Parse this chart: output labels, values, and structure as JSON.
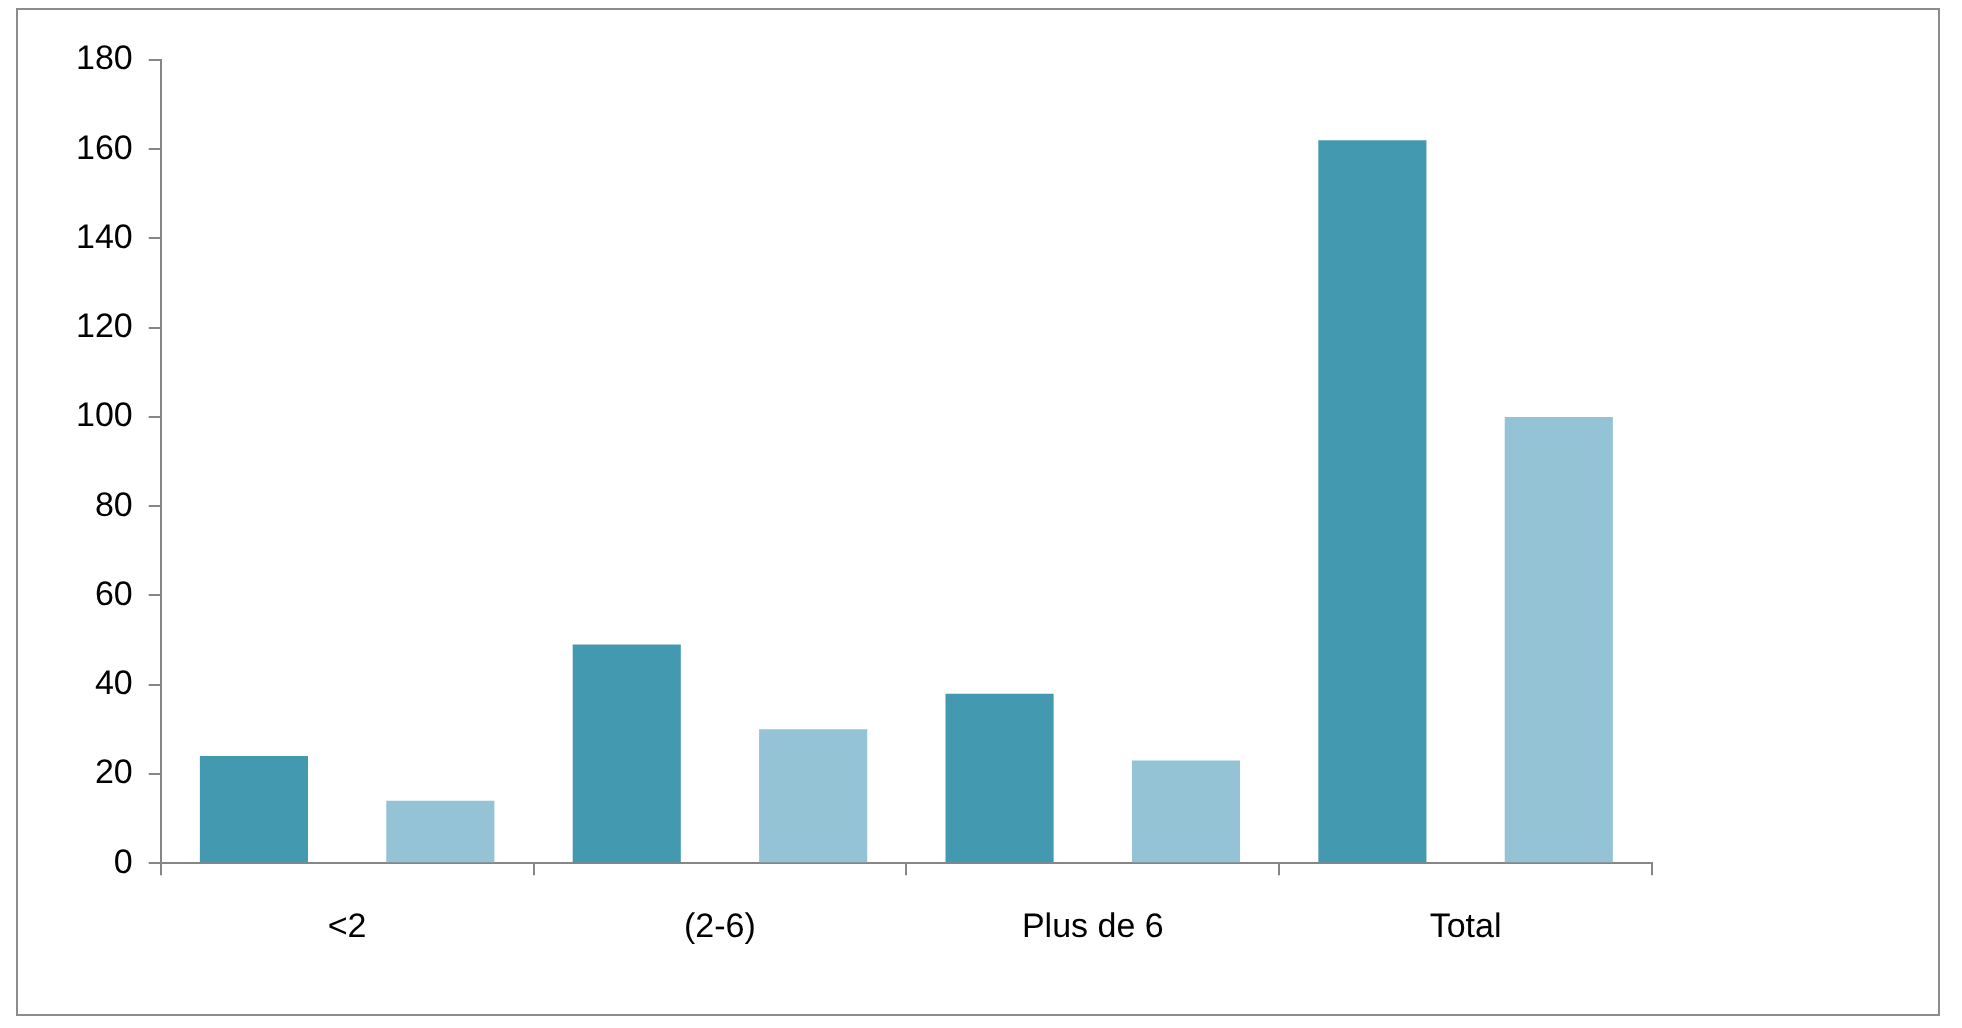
{
  "chart_data": {
    "type": "bar",
    "categories": [
      "<2",
      "(2-6)",
      "Plus de 6",
      "Total"
    ],
    "series": [
      {
        "color": "#4299b0",
        "values": [
          24,
          49,
          38,
          162
        ]
      },
      {
        "color": "#93c3d5",
        "values": [
          14,
          30,
          23,
          100
        ]
      }
    ],
    "ylim": [
      0,
      180
    ],
    "yticks": [
      0,
      20,
      40,
      60,
      80,
      100,
      120,
      140,
      160,
      180
    ],
    "grid": false,
    "legend": false
  }
}
